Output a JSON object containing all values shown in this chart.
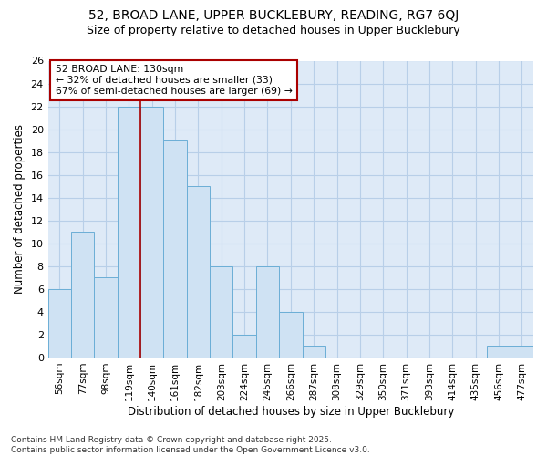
{
  "title1": "52, BROAD LANE, UPPER BUCKLEBURY, READING, RG7 6QJ",
  "title2": "Size of property relative to detached houses in Upper Bucklebury",
  "xlabel": "Distribution of detached houses by size in Upper Bucklebury",
  "ylabel": "Number of detached properties",
  "categories": [
    "56sqm",
    "77sqm",
    "98sqm",
    "119sqm",
    "140sqm",
    "161sqm",
    "182sqm",
    "203sqm",
    "224sqm",
    "245sqm",
    "266sqm",
    "287sqm",
    "308sqm",
    "329sqm",
    "350sqm",
    "371sqm",
    "393sqm",
    "414sqm",
    "435sqm",
    "456sqm",
    "477sqm"
  ],
  "values": [
    6,
    11,
    7,
    22,
    22,
    19,
    15,
    8,
    2,
    8,
    4,
    1,
    0,
    0,
    0,
    0,
    0,
    0,
    0,
    1,
    1
  ],
  "bar_color": "#cfe2f3",
  "bar_edge_color": "#6baed6",
  "grid_color": "#b8cfe8",
  "bg_color": "#deeaf7",
  "annotation_line1": "52 BROAD LANE: 130sqm",
  "annotation_line2": "← 32% of detached houses are smaller (33)",
  "annotation_line3": "67% of semi-detached houses are larger (69) →",
  "annotation_box_facecolor": "#ffffff",
  "annotation_box_edgecolor": "#aa0000",
  "vline_color": "#aa0000",
  "vline_x_index": 3.5,
  "ylim_max": 26,
  "yticks": [
    0,
    2,
    4,
    6,
    8,
    10,
    12,
    14,
    16,
    18,
    20,
    22,
    24,
    26
  ],
  "footer_text": "Contains HM Land Registry data © Crown copyright and database right 2025.\nContains public sector information licensed under the Open Government Licence v3.0."
}
